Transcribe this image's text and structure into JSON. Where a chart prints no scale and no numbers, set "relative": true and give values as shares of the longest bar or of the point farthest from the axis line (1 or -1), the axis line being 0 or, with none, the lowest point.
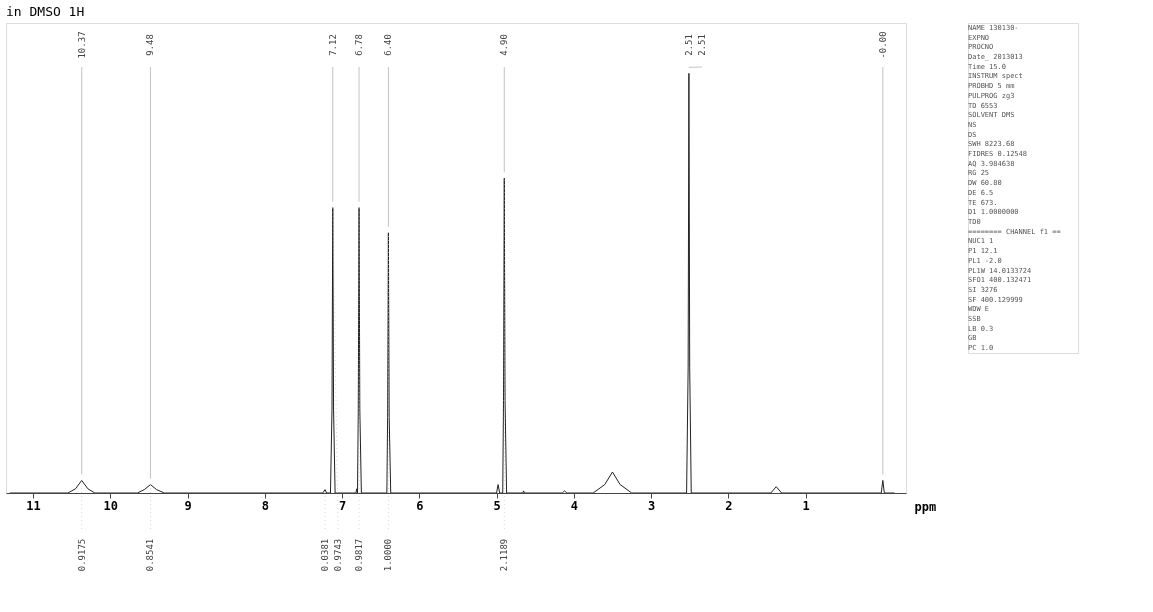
{
  "chart_data": {
    "type": "line",
    "title": "in DMSO 1H",
    "relative": true,
    "xlabel": "ppm",
    "xlim": [
      11.35,
      -0.3
    ],
    "xticks": [
      11,
      10,
      9,
      8,
      7,
      6,
      5,
      4,
      3,
      2,
      1
    ],
    "grid": false,
    "marker": "none",
    "line_style": "solid",
    "tick_labels": "x",
    "series": [
      {
        "color": "#222222",
        "x": [
          11.3,
          10.55,
          10.45,
          10.37,
          10.29,
          10.2,
          9.65,
          9.56,
          9.48,
          9.4,
          9.3,
          7.25,
          7.22,
          7.2,
          7.15,
          7.13,
          7.12,
          7.11,
          7.09,
          6.82,
          6.81,
          6.8,
          6.79,
          6.78,
          6.77,
          6.75,
          6.42,
          6.41,
          6.4,
          6.39,
          6.37,
          5.0,
          4.98,
          4.96,
          4.92,
          4.91,
          4.9,
          4.89,
          4.87,
          4.66,
          4.65,
          4.64,
          4.15,
          4.12,
          4.09,
          3.75,
          3.6,
          3.5,
          3.4,
          3.25,
          2.54,
          2.52,
          2.51,
          2.5,
          2.48,
          1.45,
          1.38,
          1.31,
          0.02,
          0.0,
          -0.02,
          -0.15
        ],
        "values": [
          0,
          0,
          0.01,
          0.03,
          0.01,
          0,
          0,
          0.008,
          0.02,
          0.008,
          0,
          0,
          0.008,
          0,
          0,
          0.2,
          0.68,
          0.2,
          0,
          0,
          0.01,
          0,
          0.2,
          0.68,
          0.2,
          0,
          0,
          0.18,
          0.62,
          0.18,
          0,
          0,
          0.02,
          0,
          0,
          0.22,
          0.75,
          0.22,
          0,
          0,
          0.005,
          0,
          0,
          0.005,
          0,
          0,
          0.02,
          0.05,
          0.02,
          0,
          0,
          0.3,
          1.0,
          0.3,
          0,
          0,
          0.015,
          0,
          0,
          0.03,
          0,
          0
        ]
      }
    ],
    "annotations": [
      {
        "text": "10.37",
        "x": 10.37,
        "y": 0.03
      },
      {
        "text": "9.48",
        "x": 9.48,
        "y": 0.02
      },
      {
        "text": "7.12",
        "x": 7.12,
        "y": 0.68
      },
      {
        "text": "6.78",
        "x": 6.78,
        "y": 0.68
      },
      {
        "text": "6.40",
        "x": 6.4,
        "y": 0.62
      },
      {
        "text": "4.90",
        "x": 4.9,
        "y": 0.75
      },
      {
        "text": "2.51",
        "x": 2.51,
        "y": 1.0
      },
      {
        "text": "2.51",
        "x": 2.51,
        "y": 1.0
      },
      {
        "text": "-0.00",
        "x": 0.0,
        "y": 0.03
      },
      {
        "text": "0.9175",
        "x": 10.37,
        "y": 0.03
      },
      {
        "text": "0.8541",
        "x": 9.48,
        "y": 0.02
      },
      {
        "text": "0.0381",
        "x": 7.22,
        "y": 0.008
      },
      {
        "text": "0.9743",
        "x": 7.12,
        "y": 0.68
      },
      {
        "text": "0.9817",
        "x": 6.78,
        "y": 0.68
      },
      {
        "text": "1.0000",
        "x": 6.4,
        "y": 0.62
      },
      {
        "text": "2.1189",
        "x": 4.9,
        "y": 0.75
      },
      "NAME 130130-",
      "EXPNO",
      "PROCNO",
      "Date_ 2013013",
      "Time 15.0",
      "INSTRUM spect",
      "PROBHD 5 mm",
      "PULPROG zg3",
      "TD 6553",
      "SOLVENT DMS",
      "NS",
      "DS",
      "SWH 8223.68",
      "FIDRES 0.12548",
      "AQ 3.984638",
      "RG 25",
      "DW 60.80",
      "DE 6.5",
      "TE 673.",
      "D1 1.0000000",
      "TD0",
      "======== CHANNEL f1 ==",
      "NUC1 1",
      "P1 12.1",
      "PL1 -2.0",
      "PL1W 14.0133724",
      "SFO1 400.132471",
      "SI 3276",
      "SF 400.129999",
      "WDW E",
      "SSB",
      "LB 0.3",
      "GB",
      "PC 1.0"
    ]
  }
}
